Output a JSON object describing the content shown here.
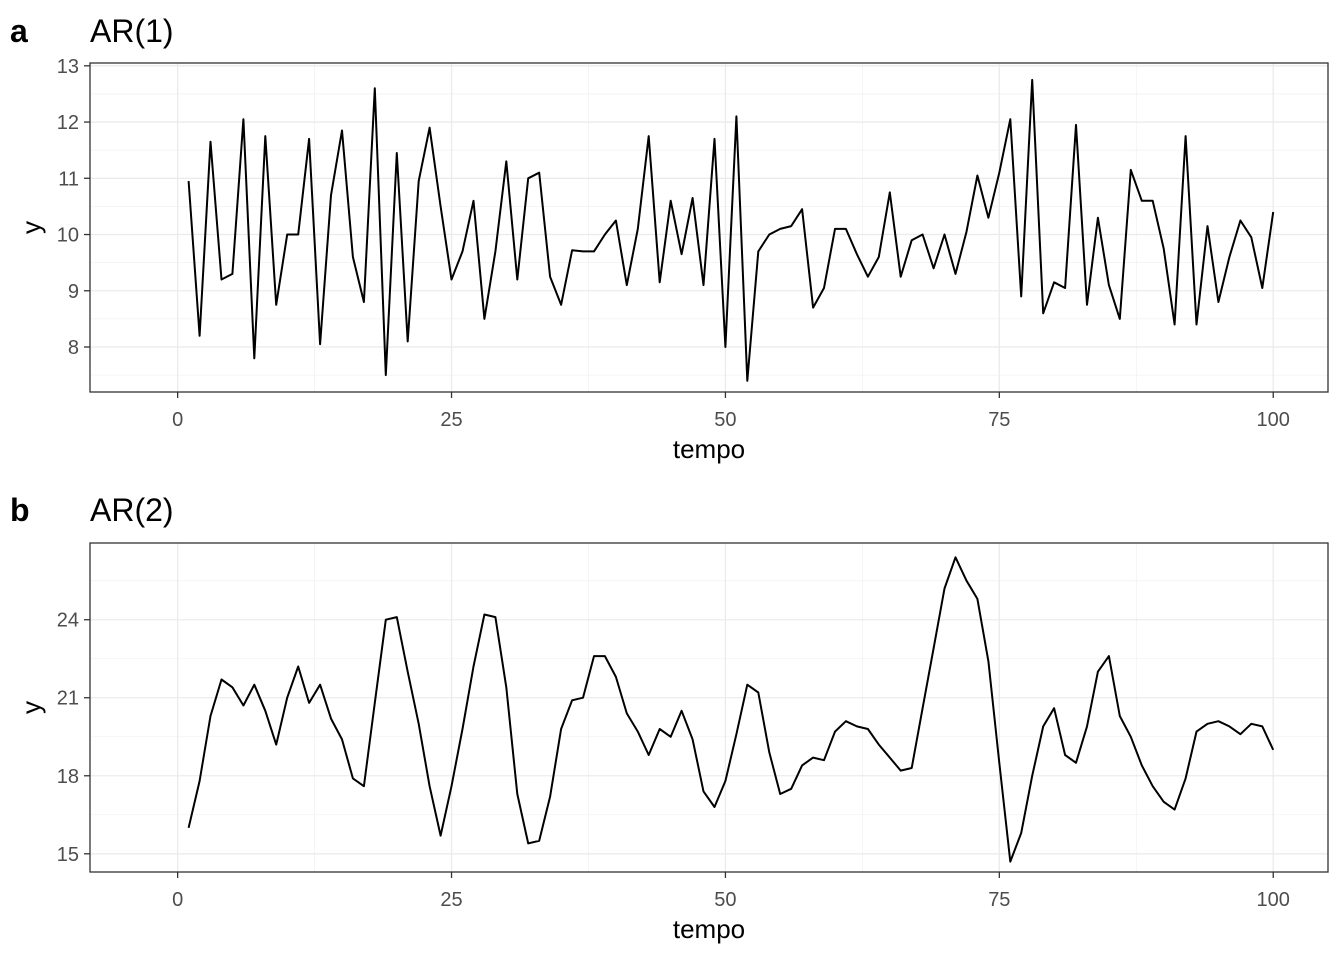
{
  "chart_data": [
    {
      "tag": "a",
      "type": "line",
      "title": "AR(1)",
      "xlabel": "tempo",
      "ylabel": "y",
      "xlim": [
        -8,
        105
      ],
      "ylim": [
        7.2,
        13.05
      ],
      "xticks": [
        0,
        25,
        50,
        75,
        100
      ],
      "yticks": [
        8,
        9,
        10,
        11,
        12,
        13
      ],
      "xtick_labels": [
        "0",
        "25",
        "50",
        "75",
        "100"
      ],
      "ytick_labels": [
        "8",
        "9",
        "10",
        "11",
        "12",
        "13"
      ],
      "grid": true,
      "x": [
        1,
        2,
        3,
        4,
        5,
        6,
        7,
        8,
        9,
        10,
        11,
        12,
        13,
        14,
        15,
        16,
        17,
        18,
        19,
        20,
        21,
        22,
        23,
        24,
        25,
        26,
        27,
        28,
        29,
        30,
        31,
        32,
        33,
        34,
        35,
        36,
        37,
        38,
        39,
        40,
        41,
        42,
        43,
        44,
        45,
        46,
        47,
        48,
        49,
        50,
        51,
        52,
        53,
        54,
        55,
        56,
        57,
        58,
        59,
        60,
        61,
        62,
        63,
        64,
        65,
        66,
        67,
        68,
        69,
        70,
        71,
        72,
        73,
        74,
        75,
        76,
        77,
        78,
        79,
        80,
        81,
        82,
        83,
        84,
        85,
        86,
        87,
        88,
        89,
        90,
        91,
        92,
        93,
        94,
        95,
        96,
        97,
        98,
        99,
        100
      ],
      "y": [
        10.95,
        8.2,
        11.65,
        9.2,
        9.3,
        12.05,
        7.8,
        11.75,
        8.75,
        10.0,
        10.0,
        11.7,
        8.05,
        10.7,
        11.85,
        9.6,
        8.8,
        12.6,
        7.5,
        11.45,
        8.1,
        10.95,
        11.9,
        10.5,
        9.2,
        9.7,
        10.6,
        8.5,
        9.7,
        11.3,
        9.2,
        11.0,
        11.1,
        9.25,
        8.75,
        9.72,
        9.7,
        9.7,
        10.0,
        10.25,
        9.1,
        10.1,
        11.75,
        9.15,
        10.6,
        9.65,
        10.65,
        9.1,
        11.7,
        8.0,
        12.1,
        7.4,
        9.7,
        10.0,
        10.1,
        10.15,
        10.45,
        8.7,
        9.05,
        10.1,
        10.1,
        9.65,
        9.25,
        9.6,
        10.75,
        9.25,
        9.9,
        10.0,
        9.4,
        10.0,
        9.3,
        10.05,
        11.05,
        10.3,
        11.1,
        12.05,
        8.9,
        12.75,
        8.6,
        9.15,
        9.05,
        11.95,
        8.75,
        10.3,
        9.1,
        8.5,
        11.15,
        10.6,
        10.6,
        9.75,
        8.4,
        11.75,
        8.4,
        10.15,
        8.8,
        9.6,
        10.25,
        9.95,
        9.05,
        10.4
      ]
    },
    {
      "tag": "b",
      "type": "line",
      "title": "AR(2)",
      "xlabel": "tempo",
      "ylabel": "y",
      "xlim": [
        -8,
        105
      ],
      "ylim": [
        14.3,
        26.95
      ],
      "xticks": [
        0,
        25,
        50,
        75,
        100
      ],
      "yticks": [
        15,
        18,
        21,
        24
      ],
      "xtick_labels": [
        "0",
        "25",
        "50",
        "75",
        "100"
      ],
      "ytick_labels": [
        "15",
        "18",
        "21",
        "24"
      ],
      "grid": true,
      "x": [
        1,
        2,
        3,
        4,
        5,
        6,
        7,
        8,
        9,
        10,
        11,
        12,
        13,
        14,
        15,
        16,
        17,
        18,
        19,
        20,
        21,
        22,
        23,
        24,
        25,
        26,
        27,
        28,
        29,
        30,
        31,
        32,
        33,
        34,
        35,
        36,
        37,
        38,
        39,
        40,
        41,
        42,
        43,
        44,
        45,
        46,
        47,
        48,
        49,
        50,
        51,
        52,
        53,
        54,
        55,
        56,
        57,
        58,
        59,
        60,
        61,
        62,
        63,
        64,
        65,
        66,
        67,
        68,
        69,
        70,
        71,
        72,
        73,
        74,
        75,
        76,
        77,
        78,
        79,
        80,
        81,
        82,
        83,
        84,
        85,
        86,
        87,
        88,
        89,
        90,
        91,
        92,
        93,
        94,
        95,
        96,
        97,
        98,
        99,
        100
      ],
      "y": [
        16.0,
        17.8,
        20.3,
        21.7,
        21.4,
        20.7,
        21.5,
        20.5,
        19.2,
        21.0,
        22.2,
        20.8,
        21.5,
        20.2,
        19.4,
        17.9,
        17.6,
        20.8,
        24.0,
        24.1,
        22.0,
        20.0,
        17.6,
        15.7,
        17.6,
        19.8,
        22.2,
        24.2,
        24.1,
        21.4,
        17.3,
        15.4,
        15.5,
        17.2,
        19.8,
        20.9,
        21.0,
        22.6,
        22.6,
        21.8,
        20.4,
        19.7,
        18.8,
        19.8,
        19.5,
        20.5,
        19.4,
        17.4,
        16.8,
        17.8,
        19.6,
        21.5,
        21.2,
        18.9,
        17.3,
        17.5,
        18.4,
        18.7,
        18.6,
        19.7,
        20.1,
        19.9,
        19.8,
        19.2,
        18.7,
        18.2,
        18.3,
        20.6,
        22.9,
        25.2,
        26.4,
        25.5,
        24.8,
        22.4,
        18.5,
        14.7,
        15.8,
        18.0,
        19.9,
        20.6,
        18.8,
        18.5,
        19.9,
        22.0,
        22.6,
        20.3,
        19.5,
        18.4,
        17.6,
        17.0,
        16.7,
        17.9,
        19.7,
        20.0,
        20.1,
        19.9,
        19.6,
        20.0,
        19.9,
        19.0
      ]
    }
  ]
}
